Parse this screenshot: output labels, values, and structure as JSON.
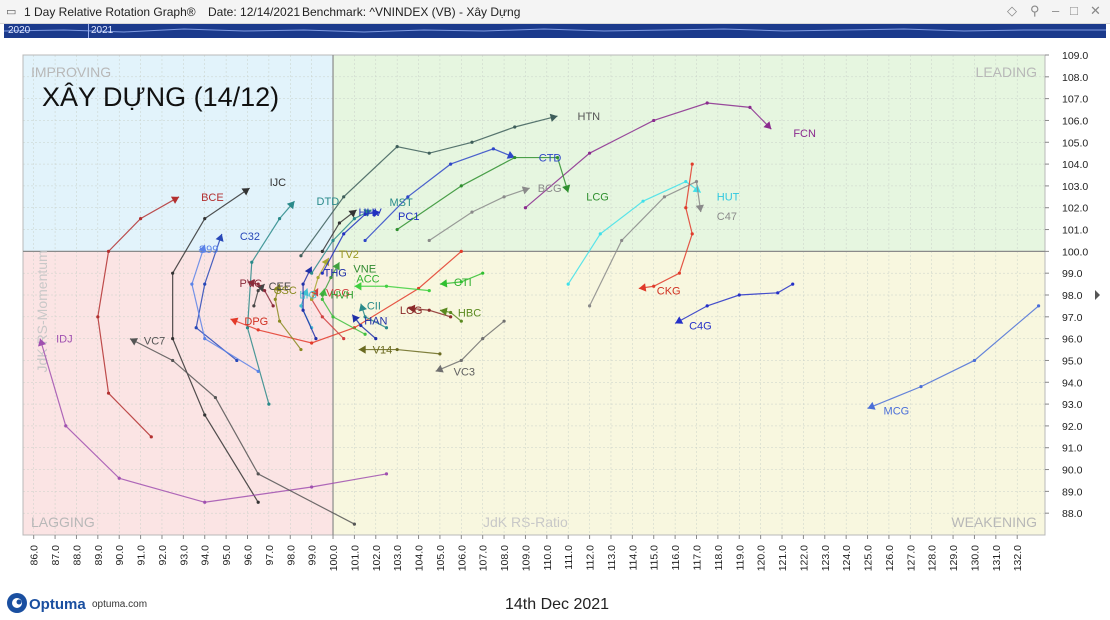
{
  "window": {
    "app_title": "1 Day Relative Rotation Graph®",
    "date_label": "Date: 12/14/2021",
    "benchmark_label": "Benchmark:  ^VNINDEX (VB) - Xây Dựng"
  },
  "timeline": {
    "years": [
      "2020",
      "2021"
    ]
  },
  "footer": {
    "brand": "Optuma",
    "url": "optuma.com",
    "date_caption": "14th Dec 2021"
  },
  "chart_data": {
    "type": "scatter",
    "title": "XÂY DỰNG (14/12)",
    "xlabel": "JdK RS-Ratio",
    "ylabel": "JdK RS-Momentum",
    "xlim": [
      85.5,
      133.3
    ],
    "ylim": [
      87.0,
      109.0
    ],
    "x_ticks": [
      86,
      87,
      88,
      89,
      90,
      91,
      92,
      93,
      94,
      95,
      96,
      97,
      98,
      99,
      100,
      101,
      102,
      103,
      104,
      105,
      106,
      107,
      108,
      109,
      110,
      111,
      112,
      113,
      114,
      115,
      116,
      117,
      118,
      119,
      120,
      121,
      122,
      123,
      124,
      125,
      126,
      127,
      128,
      129,
      130,
      131,
      132
    ],
    "x_tick_labels": [
      "86.0",
      "87.0",
      "88.0",
      "89.0",
      "90.0",
      "91.0",
      "92.0",
      "93.0",
      "94.0",
      "95.0",
      "96.0",
      "97.0",
      "98.0",
      "99.0",
      "100.0",
      "101.0",
      "102.0",
      "103.0",
      "104.0",
      "105.0",
      "106.0",
      "107.0",
      "108.0",
      "109.0",
      "110.0",
      "111.0",
      "112.0",
      "113.0",
      "114.0",
      "115.0",
      "116.0",
      "117.0",
      "118.0",
      "119.0",
      "120.0",
      "121.0",
      "122.0",
      "123.0",
      "124.0",
      "125.0",
      "126.0",
      "127.0",
      "128.0",
      "129.0",
      "130.0",
      "131.0",
      "132.0"
    ],
    "y_ticks": [
      88,
      89,
      90,
      91,
      92,
      93,
      94,
      95,
      96,
      97,
      98,
      99,
      100,
      101,
      102,
      103,
      104,
      105,
      106,
      107,
      108,
      109
    ],
    "y_tick_labels": [
      "88.0",
      "89.0",
      "90.0",
      "91.0",
      "92.0",
      "93.0",
      "94.0",
      "95.0",
      "96.0",
      "97.0",
      "98.0",
      "99.0",
      "100.0",
      "101.0",
      "102.0",
      "103.0",
      "104.0",
      "105.0",
      "106.0",
      "107.0",
      "108.0",
      "109.0"
    ],
    "center": [
      100,
      100
    ],
    "grid": true,
    "quadrants": [
      {
        "name": "IMPROVING",
        "color": "#e2f3fb",
        "corner": "top-left"
      },
      {
        "name": "LEADING",
        "color": "#e6f6e0",
        "corner": "top-right"
      },
      {
        "name": "LAGGING",
        "color": "#fbe4e4",
        "corner": "bottom-left"
      },
      {
        "name": "WEAKENING",
        "color": "#f8f7df",
        "corner": "bottom-right"
      }
    ],
    "series": [
      {
        "name": "HTN",
        "color": "#3d5e5a",
        "points": [
          [
            98.5,
            99.8
          ],
          [
            100.5,
            102.5
          ],
          [
            103,
            104.8
          ],
          [
            104.5,
            104.5
          ],
          [
            106.5,
            105
          ],
          [
            108.5,
            105.7
          ],
          [
            110.5,
            106.2
          ]
        ]
      },
      {
        "name": "FCN",
        "color": "#8a2a8e",
        "points": [
          [
            109,
            102
          ],
          [
            112,
            104.5
          ],
          [
            115,
            106
          ],
          [
            117.5,
            106.8
          ],
          [
            119.5,
            106.6
          ],
          [
            120.5,
            105.6
          ]
        ]
      },
      {
        "name": "CTD",
        "color": "#2e46c8",
        "points": [
          [
            101.5,
            100.5
          ],
          [
            103.5,
            102.5
          ],
          [
            105.5,
            104
          ],
          [
            107.5,
            104.7
          ],
          [
            108.5,
            104.3
          ]
        ]
      },
      {
        "name": "LCG",
        "color": "#2e8f2e",
        "points": [
          [
            103,
            101
          ],
          [
            106,
            103
          ],
          [
            108.5,
            104.3
          ],
          [
            110.5,
            104.3
          ],
          [
            111,
            102.7
          ]
        ]
      },
      {
        "name": "BCG",
        "color": "#8a8a8a",
        "points": [
          [
            104.5,
            100.5
          ],
          [
            106.5,
            101.8
          ],
          [
            108,
            102.5
          ],
          [
            109.2,
            102.9
          ]
        ]
      },
      {
        "name": "HUT",
        "color": "#3fe0ea",
        "points": [
          [
            111,
            98.5
          ],
          [
            112.5,
            100.8
          ],
          [
            114.5,
            102.3
          ],
          [
            116.5,
            103.2
          ],
          [
            117.2,
            102.7
          ]
        ]
      },
      {
        "name": "C47",
        "color": "#8a8a8a",
        "points": [
          [
            112,
            97.5
          ],
          [
            113.5,
            100.5
          ],
          [
            115.5,
            102.5
          ],
          [
            117,
            103.2
          ],
          [
            117.2,
            101.8
          ]
        ]
      },
      {
        "name": "CKG",
        "color": "#e03a2a",
        "points": [
          [
            116.8,
            104
          ],
          [
            116.5,
            102
          ],
          [
            116.8,
            100.8
          ],
          [
            116.2,
            99
          ],
          [
            115,
            98.4
          ],
          [
            114.3,
            98.3
          ]
        ]
      },
      {
        "name": "C4G",
        "color": "#2430c8",
        "points": [
          [
            121.5,
            98.5
          ],
          [
            120.8,
            98.1
          ],
          [
            119,
            98
          ],
          [
            117.5,
            97.5
          ],
          [
            116,
            96.7
          ]
        ]
      },
      {
        "name": "MCG",
        "color": "#4a6ed8",
        "points": [
          [
            133,
            97.5
          ],
          [
            130,
            95
          ],
          [
            127.5,
            93.8
          ],
          [
            125,
            92.8
          ]
        ]
      },
      {
        "name": "BCE",
        "color": "#b33030",
        "points": [
          [
            91.5,
            91.5
          ],
          [
            89.5,
            93.5
          ],
          [
            89,
            97
          ],
          [
            89.5,
            100
          ],
          [
            91,
            101.5
          ],
          [
            92.8,
            102.5
          ]
        ]
      },
      {
        "name": "IJC",
        "color": "#333333",
        "points": [
          [
            96.5,
            88.5
          ],
          [
            94,
            92.5
          ],
          [
            92.5,
            96
          ],
          [
            92.5,
            99
          ],
          [
            94,
            101.5
          ],
          [
            96.1,
            102.9
          ]
        ]
      },
      {
        "name": "DTD",
        "color": "#2a8a8a",
        "points": [
          [
            97,
            93
          ],
          [
            96,
            96.5
          ],
          [
            96.2,
            99.5
          ],
          [
            97.5,
            101.5
          ],
          [
            98.2,
            102.3
          ]
        ]
      },
      {
        "name": "C32",
        "color": "#2848b8",
        "points": [
          [
            95.5,
            95
          ],
          [
            93.6,
            96.5
          ],
          [
            94,
            98.5
          ],
          [
            94.8,
            100.8
          ]
        ]
      },
      {
        "name": "S99",
        "color": "#5a82e8",
        "points": [
          [
            96.5,
            94.5
          ],
          [
            94,
            96
          ],
          [
            93.4,
            98.5
          ],
          [
            94,
            100.3
          ]
        ]
      },
      {
        "name": "IDJ",
        "color": "#a050b0",
        "points": [
          [
            102.5,
            89.8
          ],
          [
            99,
            89.2
          ],
          [
            94,
            88.5
          ],
          [
            90,
            89.6
          ],
          [
            87.5,
            92
          ],
          [
            86.3,
            96
          ]
        ]
      },
      {
        "name": "VC7",
        "color": "#555555",
        "points": [
          [
            101,
            87.5
          ],
          [
            96.5,
            89.8
          ],
          [
            94.5,
            93.3
          ],
          [
            92.5,
            95
          ],
          [
            90.5,
            96
          ]
        ]
      },
      {
        "name": "PVC",
        "color": "#8a2a3a",
        "points": [
          [
            97.2,
            97.5
          ],
          [
            96.8,
            98.2
          ],
          [
            96.5,
            98.5
          ],
          [
            96,
            98.6
          ]
        ]
      },
      {
        "name": "CEE",
        "color": "#444444",
        "points": [
          [
            96.3,
            97.5
          ],
          [
            96.5,
            98.2
          ],
          [
            96.8,
            98.5
          ]
        ]
      },
      {
        "name": "DPG",
        "color": "#e33a2a",
        "points": [
          [
            106,
            100
          ],
          [
            104,
            98.3
          ],
          [
            101,
            96.5
          ],
          [
            99,
            95.8
          ],
          [
            96.5,
            96.4
          ],
          [
            95.2,
            96.9
          ]
        ]
      },
      {
        "name": "CSC",
        "color": "#8a8a20",
        "points": [
          [
            98.5,
            95.5
          ],
          [
            97.5,
            96.8
          ],
          [
            97.3,
            97.8
          ],
          [
            97.5,
            98.5
          ]
        ]
      },
      {
        "name": "VCG",
        "color": "#d04040",
        "points": [
          [
            100.5,
            96
          ],
          [
            99.5,
            97
          ],
          [
            99,
            97.8
          ],
          [
            99.3,
            98.3
          ]
        ]
      },
      {
        "name": "HVH",
        "color": "#40c040",
        "points": [
          [
            101.5,
            96.2
          ],
          [
            100,
            97
          ],
          [
            99.5,
            97.8
          ],
          [
            99.6,
            98.3
          ]
        ]
      },
      {
        "name": "LIG",
        "color": "#40c0d0",
        "points": [
          [
            99,
            96.5
          ],
          [
            98.5,
            97.5
          ],
          [
            98.8,
            98.3
          ]
        ]
      },
      {
        "name": "THG",
        "color": "#2030a8",
        "points": [
          [
            99.2,
            96
          ],
          [
            98.6,
            97.3
          ],
          [
            98.6,
            98.5
          ],
          [
            99,
            99.3
          ]
        ]
      },
      {
        "name": "TV2",
        "color": "#a8a830",
        "points": [
          [
            99,
            97.8
          ],
          [
            99.3,
            98.8
          ],
          [
            99.8,
            99.7
          ]
        ]
      },
      {
        "name": "VNE",
        "color": "#40a040",
        "points": [
          [
            99.5,
            98
          ],
          [
            99.9,
            98.8
          ],
          [
            100.3,
            99.5
          ]
        ]
      },
      {
        "name": "MST",
        "color": "#2a8a8a",
        "points": [
          [
            99,
            99
          ],
          [
            100,
            100.5
          ],
          [
            101,
            101.5
          ],
          [
            101.8,
            101.9
          ]
        ]
      },
      {
        "name": "PC1",
        "color": "#2030c0",
        "points": [
          [
            99.5,
            99
          ],
          [
            100.5,
            100.8
          ],
          [
            101.5,
            101.7
          ],
          [
            102.2,
            101.8
          ]
        ]
      },
      {
        "name": "HHV",
        "color": "#333333",
        "points": [
          [
            99.5,
            100
          ],
          [
            100.3,
            101.3
          ],
          [
            101.1,
            101.9
          ]
        ]
      },
      {
        "name": "ACC",
        "color": "#40d040",
        "points": [
          [
            104.5,
            98.2
          ],
          [
            102.5,
            98.4
          ],
          [
            101,
            98.4
          ]
        ]
      },
      {
        "name": "CTI",
        "color": "#30c030",
        "points": [
          [
            107,
            99
          ],
          [
            106,
            98.6
          ],
          [
            105,
            98.5
          ]
        ]
      },
      {
        "name": "CII",
        "color": "#2a8a8a",
        "points": [
          [
            102.5,
            96.5
          ],
          [
            101.5,
            97
          ],
          [
            101.3,
            97.6
          ]
        ]
      },
      {
        "name": "HAN",
        "color": "#2030a8",
        "points": [
          [
            102,
            96
          ],
          [
            101.3,
            96.6
          ],
          [
            100.9,
            97.1
          ]
        ]
      },
      {
        "name": "LCG2",
        "color": "#8a2a2a",
        "points": [
          [
            105.5,
            97
          ],
          [
            104.5,
            97.3
          ],
          [
            103.5,
            97.4
          ]
        ]
      },
      {
        "name": "HBC",
        "color": "#5a8a20",
        "points": [
          [
            106,
            96.8
          ],
          [
            105.5,
            97.2
          ],
          [
            105,
            97.3
          ]
        ]
      },
      {
        "name": "V14",
        "color": "#6a6a20",
        "points": [
          [
            105,
            95.3
          ],
          [
            103,
            95.5
          ],
          [
            101.2,
            95.5
          ]
        ]
      },
      {
        "name": "VC3",
        "color": "#707070",
        "points": [
          [
            108,
            96.8
          ],
          [
            107,
            96
          ],
          [
            106,
            95
          ],
          [
            104.8,
            94.5
          ]
        ]
      }
    ],
    "labels": [
      {
        "text": "HTN",
        "series": "HTN",
        "color": "#555555"
      },
      {
        "text": "FCN",
        "series": "FCN",
        "color": "#8a2a8e"
      },
      {
        "text": "CTD",
        "series": "CTD",
        "color": "#2e46c8"
      },
      {
        "text": "LCG",
        "series": "LCG",
        "color": "#2e8f2e"
      },
      {
        "text": "BCG",
        "series": "BCG",
        "color": "#8a8a8a"
      },
      {
        "text": "HUT",
        "series": "HUT",
        "color": "#30c8e0"
      },
      {
        "text": "C47",
        "series": "C47",
        "color": "#8a8a8a"
      },
      {
        "text": "CKG",
        "series": "CKG",
        "color": "#d03020"
      },
      {
        "text": "C4G",
        "series": "C4G",
        "color": "#2430c8"
      },
      {
        "text": "MCG",
        "series": "MCG",
        "color": "#4a6ed8"
      },
      {
        "text": "BCE",
        "series": "BCE",
        "color": "#b33030"
      },
      {
        "text": "IJC",
        "series": "IJC",
        "color": "#333333"
      },
      {
        "text": "DTD",
        "series": "DTD",
        "color": "#2a8a8a"
      },
      {
        "text": "C32",
        "series": "C32",
        "color": "#2848b8"
      },
      {
        "text": "S99",
        "series": "S99",
        "color": "#5a82e8"
      },
      {
        "text": "IDJ",
        "series": "IDJ",
        "color": "#a050b0"
      },
      {
        "text": "VC7",
        "series": "VC7",
        "color": "#555555"
      },
      {
        "text": "PVC",
        "series": "PVC",
        "color": "#8a2a3a"
      },
      {
        "text": "CEE",
        "series": "CEE",
        "color": "#444444"
      },
      {
        "text": "DPG",
        "series": "DPG",
        "color": "#d03020"
      },
      {
        "text": "CSC",
        "series": "CSC",
        "color": "#8a8a20"
      },
      {
        "text": "VCG",
        "series": "VCG",
        "color": "#d04040"
      },
      {
        "text": "HVH",
        "series": "HVH",
        "color": "#30a030"
      },
      {
        "text": "LIG",
        "series": "LIG",
        "color": "#40c0d0"
      },
      {
        "text": "THG",
        "series": "THG",
        "color": "#2030a8"
      },
      {
        "text": "TV2",
        "series": "TV2",
        "color": "#9a9a20"
      },
      {
        "text": "VNE",
        "series": "VNE",
        "color": "#308a30"
      },
      {
        "text": "MST",
        "series": "MST",
        "color": "#2a8a8a"
      },
      {
        "text": "PC1",
        "series": "PC1",
        "color": "#2030c0"
      },
      {
        "text": "HHV",
        "series": "HHV",
        "color": "#2030c0"
      },
      {
        "text": "ACC",
        "series": "ACC",
        "color": "#30b030"
      },
      {
        "text": "CTI",
        "series": "CTI",
        "color": "#30b030"
      },
      {
        "text": "CII",
        "series": "CII",
        "color": "#2a8a8a"
      },
      {
        "text": "HAN",
        "series": "HAN",
        "color": "#2030a8"
      },
      {
        "text": "LCG",
        "series": "LCG2",
        "color": "#8a2a2a"
      },
      {
        "text": "HBC",
        "series": "HBC",
        "color": "#5a8a20"
      },
      {
        "text": "V14",
        "series": "V14",
        "color": "#6a6a20"
      },
      {
        "text": "VC3",
        "series": "VC3",
        "color": "#606060"
      }
    ]
  }
}
